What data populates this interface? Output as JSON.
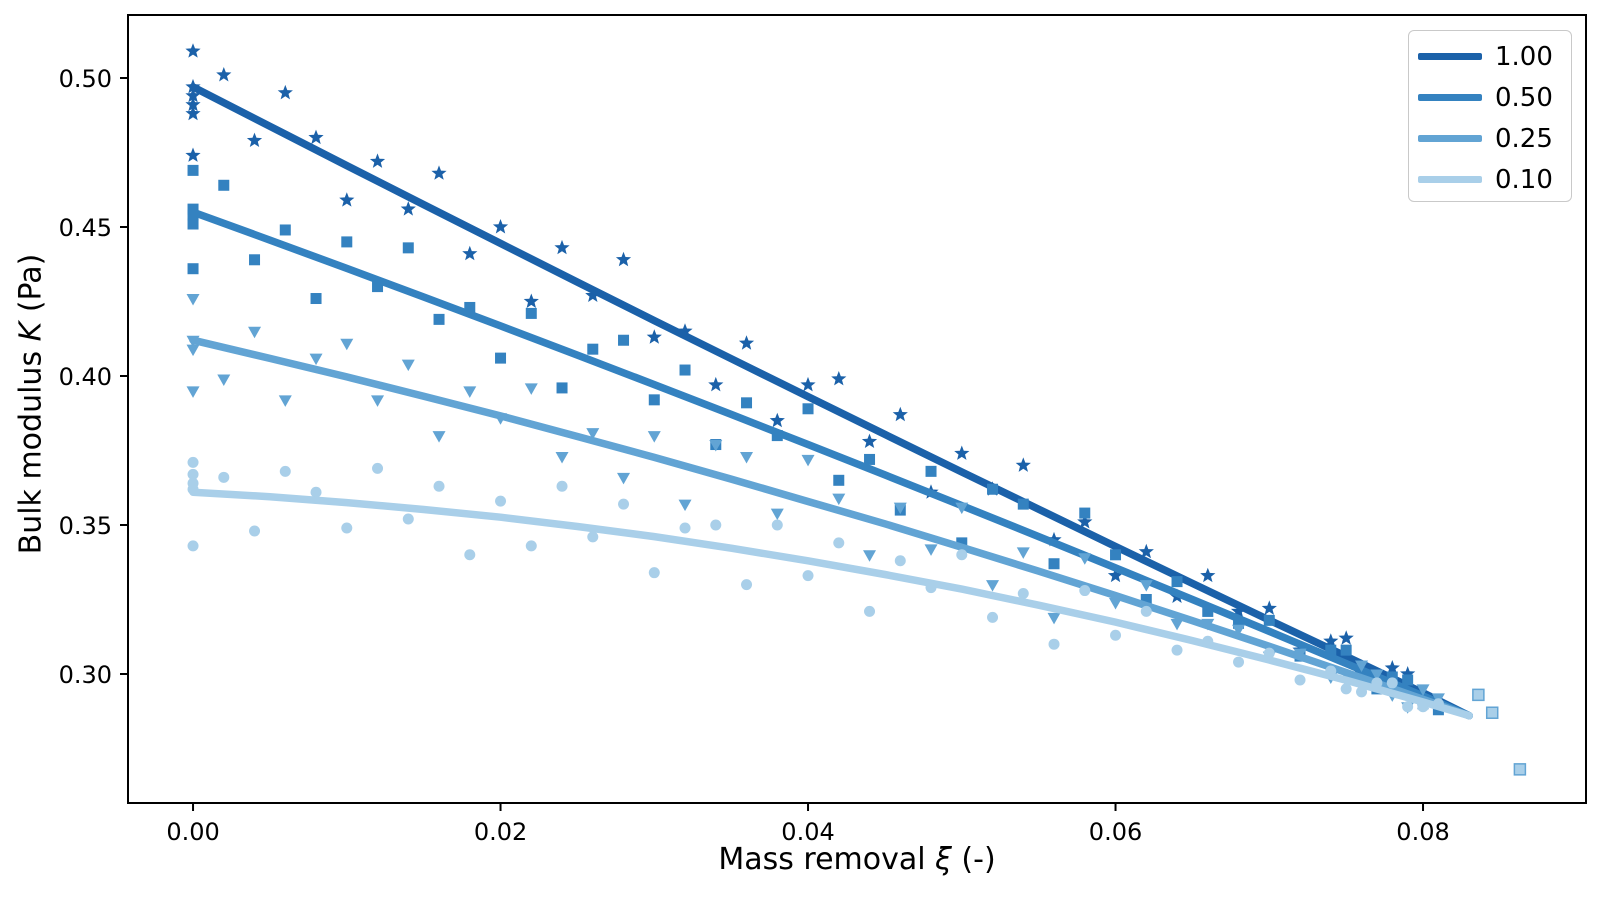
{
  "chart_data": {
    "type": "scatter",
    "title": "",
    "xlabel": "Mass removal ξ (-)",
    "ylabel": "Bulk modulus K (Pa)",
    "xlabel_parts": {
      "prefix": "Mass removal ",
      "symbol": "ξ",
      "suffix": " (-)"
    },
    "ylabel_parts": {
      "prefix": "Bulk modulus ",
      "symbol": "K",
      "suffix": " (Pa)"
    },
    "xlim": [
      -0.00423,
      0.0906
    ],
    "ylim": [
      0.25671,
      0.52114
    ],
    "grid": false,
    "legend_position": "upper right",
    "x_ticks": {
      "values": [
        0.0,
        0.02,
        0.04,
        0.06,
        0.08
      ],
      "labels": [
        "0.00",
        "0.02",
        "0.04",
        "0.06",
        "0.08"
      ]
    },
    "y_ticks": {
      "values": [
        0.3,
        0.35,
        0.4,
        0.45,
        0.5
      ],
      "labels": [
        "0.30",
        "0.35",
        "0.40",
        "0.45",
        "0.50"
      ]
    },
    "series": [
      {
        "name": "1.00",
        "color": "#1b61a9",
        "marker": "star",
        "in_legend": true,
        "trend": [
          [
            0,
            0.497
          ],
          [
            0.005,
            0.4838
          ],
          [
            0.01,
            0.4706
          ],
          [
            0.015,
            0.4575
          ],
          [
            0.02,
            0.4445
          ],
          [
            0.025,
            0.4315
          ],
          [
            0.03,
            0.4186
          ],
          [
            0.035,
            0.4058
          ],
          [
            0.04,
            0.3931
          ],
          [
            0.045,
            0.3804
          ],
          [
            0.05,
            0.3678
          ],
          [
            0.055,
            0.3553
          ],
          [
            0.06,
            0.3428
          ],
          [
            0.065,
            0.3304
          ],
          [
            0.07,
            0.3181
          ],
          [
            0.075,
            0.3059
          ],
          [
            0.08,
            0.2937
          ],
          [
            0.083,
            0.286
          ]
        ],
        "points": [
          [
            0,
            0.509
          ],
          [
            0,
            0.497
          ],
          [
            0,
            0.494
          ],
          [
            0,
            0.491
          ],
          [
            0,
            0.488
          ],
          [
            0,
            0.474
          ],
          [
            0.002,
            0.501
          ],
          [
            0.004,
            0.479
          ],
          [
            0.006,
            0.495
          ],
          [
            0.008,
            0.48
          ],
          [
            0.01,
            0.459
          ],
          [
            0.012,
            0.472
          ],
          [
            0.014,
            0.456
          ],
          [
            0.016,
            0.468
          ],
          [
            0.018,
            0.441
          ],
          [
            0.02,
            0.45
          ],
          [
            0.022,
            0.425
          ],
          [
            0.024,
            0.443
          ],
          [
            0.026,
            0.427
          ],
          [
            0.028,
            0.439
          ],
          [
            0.03,
            0.413
          ],
          [
            0.032,
            0.415
          ],
          [
            0.034,
            0.397
          ],
          [
            0.036,
            0.411
          ],
          [
            0.038,
            0.385
          ],
          [
            0.04,
            0.397
          ],
          [
            0.042,
            0.399
          ],
          [
            0.044,
            0.378
          ],
          [
            0.046,
            0.387
          ],
          [
            0.048,
            0.361
          ],
          [
            0.05,
            0.374
          ],
          [
            0.052,
            0.362
          ],
          [
            0.054,
            0.37
          ],
          [
            0.056,
            0.345
          ],
          [
            0.058,
            0.351
          ],
          [
            0.06,
            0.333
          ],
          [
            0.062,
            0.341
          ],
          [
            0.064,
            0.326
          ],
          [
            0.066,
            0.333
          ],
          [
            0.068,
            0.321
          ],
          [
            0.07,
            0.322
          ],
          [
            0.072,
            0.308
          ],
          [
            0.074,
            0.311
          ],
          [
            0.076,
            0.3
          ],
          [
            0.078,
            0.302
          ],
          [
            0.08,
            0.29
          ],
          [
            0.075,
            0.312
          ],
          [
            0.077,
            0.296
          ],
          [
            0.079,
            0.3
          ],
          [
            0.081,
            0.289
          ]
        ]
      },
      {
        "name": "0.50",
        "color": "#3482c0",
        "marker": "square",
        "in_legend": true,
        "trend": [
          [
            0,
            0.455
          ],
          [
            0.005,
            0.4456
          ],
          [
            0.01,
            0.4361
          ],
          [
            0.015,
            0.4265
          ],
          [
            0.02,
            0.4168
          ],
          [
            0.025,
            0.407
          ],
          [
            0.03,
            0.3971
          ],
          [
            0.035,
            0.3871
          ],
          [
            0.04,
            0.377
          ],
          [
            0.045,
            0.3668
          ],
          [
            0.05,
            0.3565
          ],
          [
            0.055,
            0.3461
          ],
          [
            0.06,
            0.3356
          ],
          [
            0.065,
            0.325
          ],
          [
            0.07,
            0.3143
          ],
          [
            0.075,
            0.3035
          ],
          [
            0.08,
            0.2926
          ],
          [
            0.083,
            0.286
          ]
        ],
        "points": [
          [
            0,
            0.469
          ],
          [
            0,
            0.456
          ],
          [
            0,
            0.454
          ],
          [
            0,
            0.451
          ],
          [
            0,
            0.436
          ],
          [
            0.002,
            0.464
          ],
          [
            0.004,
            0.439
          ],
          [
            0.006,
            0.449
          ],
          [
            0.008,
            0.426
          ],
          [
            0.01,
            0.445
          ],
          [
            0.012,
            0.43
          ],
          [
            0.014,
            0.443
          ],
          [
            0.016,
            0.419
          ],
          [
            0.018,
            0.423
          ],
          [
            0.02,
            0.406
          ],
          [
            0.022,
            0.421
          ],
          [
            0.024,
            0.396
          ],
          [
            0.026,
            0.409
          ],
          [
            0.028,
            0.412
          ],
          [
            0.03,
            0.392
          ],
          [
            0.032,
            0.402
          ],
          [
            0.034,
            0.377
          ],
          [
            0.036,
            0.391
          ],
          [
            0.038,
            0.38
          ],
          [
            0.04,
            0.389
          ],
          [
            0.042,
            0.365
          ],
          [
            0.044,
            0.372
          ],
          [
            0.046,
            0.355
          ],
          [
            0.048,
            0.368
          ],
          [
            0.05,
            0.344
          ],
          [
            0.052,
            0.362
          ],
          [
            0.054,
            0.357
          ],
          [
            0.056,
            0.337
          ],
          [
            0.058,
            0.354
          ],
          [
            0.06,
            0.34
          ],
          [
            0.062,
            0.325
          ],
          [
            0.064,
            0.331
          ],
          [
            0.066,
            0.321
          ],
          [
            0.068,
            0.317
          ],
          [
            0.07,
            0.318
          ],
          [
            0.072,
            0.306
          ],
          [
            0.074,
            0.308
          ],
          [
            0.076,
            0.298
          ],
          [
            0.078,
            0.299
          ],
          [
            0.08,
            0.29
          ],
          [
            0.075,
            0.308
          ],
          [
            0.077,
            0.295
          ],
          [
            0.079,
            0.298
          ],
          [
            0.081,
            0.288
          ]
        ]
      },
      {
        "name": "0.25",
        "color": "#62a4d4",
        "marker": "triangle-down",
        "in_legend": true,
        "trend": [
          [
            0,
            0.412
          ],
          [
            0.005,
            0.4059
          ],
          [
            0.01,
            0.3997
          ],
          [
            0.015,
            0.3932
          ],
          [
            0.02,
            0.3866
          ],
          [
            0.025,
            0.3797
          ],
          [
            0.03,
            0.3727
          ],
          [
            0.035,
            0.3654
          ],
          [
            0.04,
            0.3579
          ],
          [
            0.045,
            0.3504
          ],
          [
            0.05,
            0.3425
          ],
          [
            0.055,
            0.3345
          ],
          [
            0.06,
            0.3263
          ],
          [
            0.065,
            0.3179
          ],
          [
            0.07,
            0.3093
          ],
          [
            0.075,
            0.3005
          ],
          [
            0.08,
            0.2915
          ],
          [
            0.083,
            0.286
          ]
        ],
        "points": [
          [
            0,
            0.426
          ],
          [
            0,
            0.412
          ],
          [
            0,
            0.409
          ],
          [
            0,
            0.395
          ],
          [
            0.002,
            0.399
          ],
          [
            0.004,
            0.415
          ],
          [
            0.006,
            0.392
          ],
          [
            0.008,
            0.406
          ],
          [
            0.01,
            0.411
          ],
          [
            0.012,
            0.392
          ],
          [
            0.014,
            0.404
          ],
          [
            0.016,
            0.38
          ],
          [
            0.018,
            0.395
          ],
          [
            0.02,
            0.386
          ],
          [
            0.022,
            0.396
          ],
          [
            0.024,
            0.373
          ],
          [
            0.026,
            0.381
          ],
          [
            0.028,
            0.366
          ],
          [
            0.03,
            0.38
          ],
          [
            0.032,
            0.357
          ],
          [
            0.034,
            0.377
          ],
          [
            0.036,
            0.373
          ],
          [
            0.038,
            0.354
          ],
          [
            0.04,
            0.372
          ],
          [
            0.042,
            0.359
          ],
          [
            0.044,
            0.34
          ],
          [
            0.046,
            0.356
          ],
          [
            0.048,
            0.342
          ],
          [
            0.05,
            0.356
          ],
          [
            0.052,
            0.33
          ],
          [
            0.054,
            0.341
          ],
          [
            0.056,
            0.319
          ],
          [
            0.058,
            0.339
          ],
          [
            0.06,
            0.324
          ],
          [
            0.062,
            0.33
          ],
          [
            0.064,
            0.317
          ],
          [
            0.066,
            0.317
          ],
          [
            0.068,
            0.315
          ],
          [
            0.07,
            0.306
          ],
          [
            0.072,
            0.307
          ],
          [
            0.074,
            0.299
          ],
          [
            0.076,
            0.303
          ],
          [
            0.078,
            0.293
          ],
          [
            0.08,
            0.295
          ],
          [
            0.075,
            0.298
          ],
          [
            0.077,
            0.3
          ],
          [
            0.079,
            0.289
          ],
          [
            0.081,
            0.292
          ]
        ]
      },
      {
        "name": "0.10",
        "color": "#a9cfe9",
        "marker": "circle",
        "in_legend": true,
        "trend": [
          [
            0,
            0.361
          ],
          [
            0.005,
            0.3595
          ],
          [
            0.01,
            0.3575
          ],
          [
            0.015,
            0.3552
          ],
          [
            0.02,
            0.3526
          ],
          [
            0.025,
            0.3495
          ],
          [
            0.03,
            0.3461
          ],
          [
            0.035,
            0.3422
          ],
          [
            0.04,
            0.338
          ],
          [
            0.045,
            0.3334
          ],
          [
            0.05,
            0.3285
          ],
          [
            0.055,
            0.3231
          ],
          [
            0.06,
            0.3174
          ],
          [
            0.065,
            0.3112
          ],
          [
            0.07,
            0.3047
          ],
          [
            0.075,
            0.2979
          ],
          [
            0.08,
            0.2906
          ],
          [
            0.083,
            0.286
          ]
        ],
        "points": [
          [
            0,
            0.371
          ],
          [
            0,
            0.367
          ],
          [
            0,
            0.364
          ],
          [
            0,
            0.362
          ],
          [
            0,
            0.343
          ],
          [
            0.002,
            0.366
          ],
          [
            0.004,
            0.348
          ],
          [
            0.006,
            0.368
          ],
          [
            0.008,
            0.361
          ],
          [
            0.01,
            0.349
          ],
          [
            0.012,
            0.369
          ],
          [
            0.014,
            0.352
          ],
          [
            0.016,
            0.363
          ],
          [
            0.018,
            0.34
          ],
          [
            0.02,
            0.358
          ],
          [
            0.022,
            0.343
          ],
          [
            0.024,
            0.363
          ],
          [
            0.026,
            0.346
          ],
          [
            0.028,
            0.357
          ],
          [
            0.03,
            0.334
          ],
          [
            0.032,
            0.349
          ],
          [
            0.034,
            0.35
          ],
          [
            0.036,
            0.33
          ],
          [
            0.038,
            0.35
          ],
          [
            0.04,
            0.333
          ],
          [
            0.042,
            0.344
          ],
          [
            0.044,
            0.321
          ],
          [
            0.046,
            0.338
          ],
          [
            0.048,
            0.329
          ],
          [
            0.05,
            0.34
          ],
          [
            0.052,
            0.319
          ],
          [
            0.054,
            0.327
          ],
          [
            0.056,
            0.31
          ],
          [
            0.058,
            0.328
          ],
          [
            0.06,
            0.313
          ],
          [
            0.062,
            0.321
          ],
          [
            0.064,
            0.308
          ],
          [
            0.066,
            0.311
          ],
          [
            0.068,
            0.304
          ],
          [
            0.07,
            0.307
          ],
          [
            0.072,
            0.298
          ],
          [
            0.074,
            0.301
          ],
          [
            0.076,
            0.294
          ],
          [
            0.078,
            0.297
          ],
          [
            0.08,
            0.289
          ],
          [
            0.075,
            0.295
          ],
          [
            0.077,
            0.297
          ],
          [
            0.079,
            0.289
          ],
          [
            0.081,
            0.29
          ]
        ]
      },
      {
        "name": "outliers",
        "color": "#a9cfe9",
        "edge_color": "#62a4d4",
        "marker": "square",
        "in_legend": false,
        "trend": [],
        "points": [
          [
            0.0836,
            0.293
          ],
          [
            0.0845,
            0.287
          ],
          [
            0.0863,
            0.268
          ]
        ]
      }
    ],
    "legend_labels": [
      "1.00",
      "0.50",
      "0.25",
      "0.10"
    ]
  }
}
